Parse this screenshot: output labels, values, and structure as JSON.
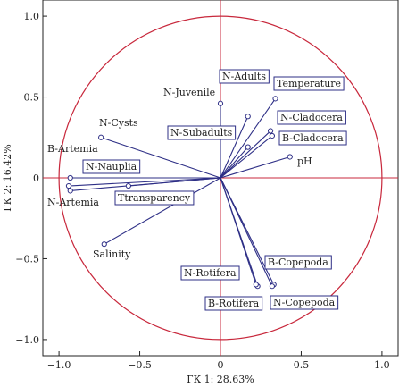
{
  "chart_data": {
    "type": "biplot",
    "xlabel": "ГК 1: 28.63%",
    "ylabel": "ГК 2: 16.42%",
    "xlim": [
      -1.1,
      1.1
    ],
    "ylim": [
      -1.1,
      1.1
    ],
    "xticks": [
      "−1.0",
      "−0.5",
      "0",
      "0.5",
      "1.0"
    ],
    "yticks": [
      "1.0",
      "0.5",
      "0",
      "−0.5",
      "−1.0"
    ],
    "tick_values_x": [
      -1.0,
      -0.5,
      0,
      0.5,
      1.0
    ],
    "tick_values_y": [
      1.0,
      0.5,
      0,
      -0.5,
      -1.0
    ],
    "circle_radius": 1.0,
    "colors": {
      "vectors": "#2e2f86",
      "circle": "#c8283c",
      "axes": "#c8283c",
      "box": "#2e2f86"
    },
    "vectors": [
      {
        "name": "N-Juvenile",
        "x": 0.0,
        "y": 0.46,
        "boxed": false
      },
      {
        "name": "N-Adults",
        "x": 0.17,
        "y": 0.38,
        "boxed": true
      },
      {
        "name": "Temperature",
        "x": 0.34,
        "y": 0.49,
        "boxed": true
      },
      {
        "name": "N-Cladocera",
        "x": 0.31,
        "y": 0.29,
        "boxed": true
      },
      {
        "name": "N-Subadults",
        "x": 0.17,
        "y": 0.19,
        "boxed": true
      },
      {
        "name": "B-Cladocera",
        "x": 0.32,
        "y": 0.26,
        "boxed": true
      },
      {
        "name": "pH",
        "x": 0.43,
        "y": 0.13,
        "boxed": false
      },
      {
        "name": "N-Cysts",
        "x": -0.74,
        "y": 0.25,
        "boxed": false
      },
      {
        "name": "B-Artemia",
        "x": -0.93,
        "y": 0.0,
        "boxed": false
      },
      {
        "name": "N-Nauplia",
        "x": -0.94,
        "y": -0.05,
        "boxed": true
      },
      {
        "name": "N-Artemia",
        "x": -0.93,
        "y": -0.08,
        "boxed": false
      },
      {
        "name": "Ttransparency",
        "x": -0.57,
        "y": -0.05,
        "boxed": true
      },
      {
        "name": "Salinity",
        "x": -0.72,
        "y": -0.41,
        "boxed": false
      },
      {
        "name": "N-Rotifera",
        "x": 0.23,
        "y": -0.67,
        "boxed": true
      },
      {
        "name": "B-Rotifera",
        "x": 0.22,
        "y": -0.66,
        "boxed": true
      },
      {
        "name": "B-Copepoda",
        "x": 0.33,
        "y": -0.66,
        "boxed": true
      },
      {
        "name": "N-Copepoda",
        "x": 0.32,
        "y": -0.67,
        "boxed": true
      }
    ]
  }
}
